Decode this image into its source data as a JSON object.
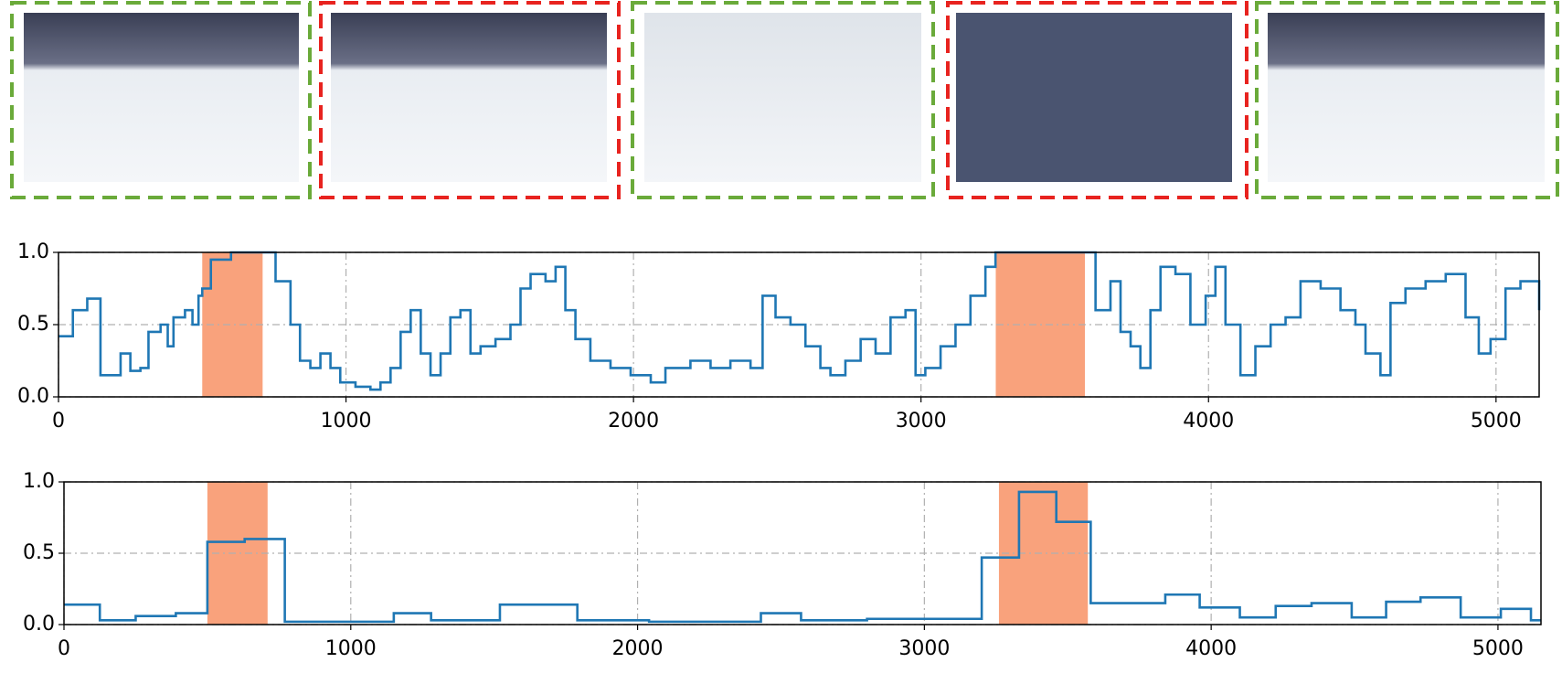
{
  "chart_data": [
    {
      "type": "line",
      "drawstyle": "steps-post",
      "color": "#1f77b4",
      "grid": true,
      "spans": [
        [
          500,
          710
        ],
        [
          3260,
          3570
        ]
      ],
      "span_color": "#f9a27c",
      "xlim": [
        0,
        5150
      ],
      "ylim": [
        0,
        1
      ],
      "xticks": [
        0,
        1000,
        2000,
        3000,
        4000,
        5000
      ],
      "yticks": [
        {
          "value": 0,
          "label": "0.0"
        },
        0.5,
        {
          "value": 1,
          "label": "1.0"
        }
      ],
      "x": [
        0,
        50,
        100,
        146,
        216,
        250,
        285,
        313,
        355,
        380,
        400,
        440,
        466,
        487,
        500,
        530,
        600,
        755,
        807,
        840,
        876,
        911,
        946,
        980,
        1033,
        1085,
        1120,
        1155,
        1190,
        1225,
        1260,
        1294,
        1329,
        1363,
        1398,
        1433,
        1468,
        1520,
        1572,
        1607,
        1642,
        1694,
        1729,
        1763,
        1798,
        1850,
        1920,
        1990,
        2060,
        2111,
        2198,
        2268,
        2337,
        2407,
        2449,
        2494,
        2546,
        2598,
        2650,
        2685,
        2737,
        2790,
        2842,
        2894,
        2946,
        2981,
        3015,
        3068,
        3120,
        3172,
        3224,
        3259,
        3607,
        3659,
        3694,
        3729,
        3763,
        3798,
        3833,
        3885,
        3937,
        3990,
        4024,
        4059,
        4111,
        4163,
        4216,
        4268,
        4320,
        4390,
        4459,
        4511,
        4546,
        4598,
        4633,
        4685,
        4755,
        4825,
        4894,
        4940,
        4981,
        5033,
        5085,
        5150
      ],
      "values": [
        0.42,
        0.6,
        0.68,
        0.15,
        0.3,
        0.18,
        0.2,
        0.45,
        0.5,
        0.35,
        0.55,
        0.6,
        0.5,
        0.7,
        0.75,
        0.95,
        1.0,
        0.8,
        0.5,
        0.25,
        0.2,
        0.3,
        0.2,
        0.1,
        0.07,
        0.05,
        0.1,
        0.2,
        0.45,
        0.6,
        0.3,
        0.15,
        0.3,
        0.55,
        0.6,
        0.3,
        0.35,
        0.4,
        0.5,
        0.75,
        0.85,
        0.8,
        0.9,
        0.6,
        0.4,
        0.25,
        0.2,
        0.15,
        0.1,
        0.2,
        0.25,
        0.2,
        0.25,
        0.2,
        0.7,
        0.55,
        0.5,
        0.35,
        0.2,
        0.15,
        0.25,
        0.4,
        0.3,
        0.55,
        0.6,
        0.15,
        0.2,
        0.35,
        0.5,
        0.7,
        0.9,
        1.0,
        0.6,
        0.8,
        0.45,
        0.35,
        0.2,
        0.6,
        0.9,
        0.85,
        0.5,
        0.7,
        0.9,
        0.5,
        0.15,
        0.35,
        0.5,
        0.55,
        0.8,
        0.75,
        0.6,
        0.5,
        0.3,
        0.15,
        0.65,
        0.75,
        0.8,
        0.85,
        0.55,
        0.3,
        0.4,
        0.75,
        0.8,
        0.6
      ]
    },
    {
      "type": "line",
      "drawstyle": "steps-post",
      "color": "#1f77b4",
      "grid": true,
      "spans": [
        [
          500,
          710
        ],
        [
          3260,
          3570
        ]
      ],
      "span_color": "#f9a27c",
      "xlim": [
        0,
        5150
      ],
      "ylim": [
        0,
        1
      ],
      "xticks": [
        0,
        1000,
        2000,
        3000,
        4000,
        5000
      ],
      "yticks": [
        {
          "value": 0,
          "label": "0.0"
        },
        0.5,
        {
          "value": 1,
          "label": "1.0"
        }
      ],
      "x": [
        0,
        125,
        250,
        390,
        500,
        630,
        770,
        1150,
        1280,
        1520,
        1790,
        2040,
        2430,
        2570,
        2800,
        3200,
        3330,
        3460,
        3580,
        3840,
        3960,
        4100,
        4225,
        4350,
        4490,
        4610,
        4730,
        4870,
        5010,
        5115,
        5150
      ],
      "values": [
        0.14,
        0.03,
        0.06,
        0.08,
        0.58,
        0.6,
        0.02,
        0.08,
        0.03,
        0.14,
        0.03,
        0.02,
        0.08,
        0.03,
        0.04,
        0.47,
        0.93,
        0.72,
        0.15,
        0.21,
        0.12,
        0.05,
        0.13,
        0.15,
        0.05,
        0.16,
        0.19,
        0.05,
        0.11,
        0.03,
        0.03
      ]
    }
  ]
}
